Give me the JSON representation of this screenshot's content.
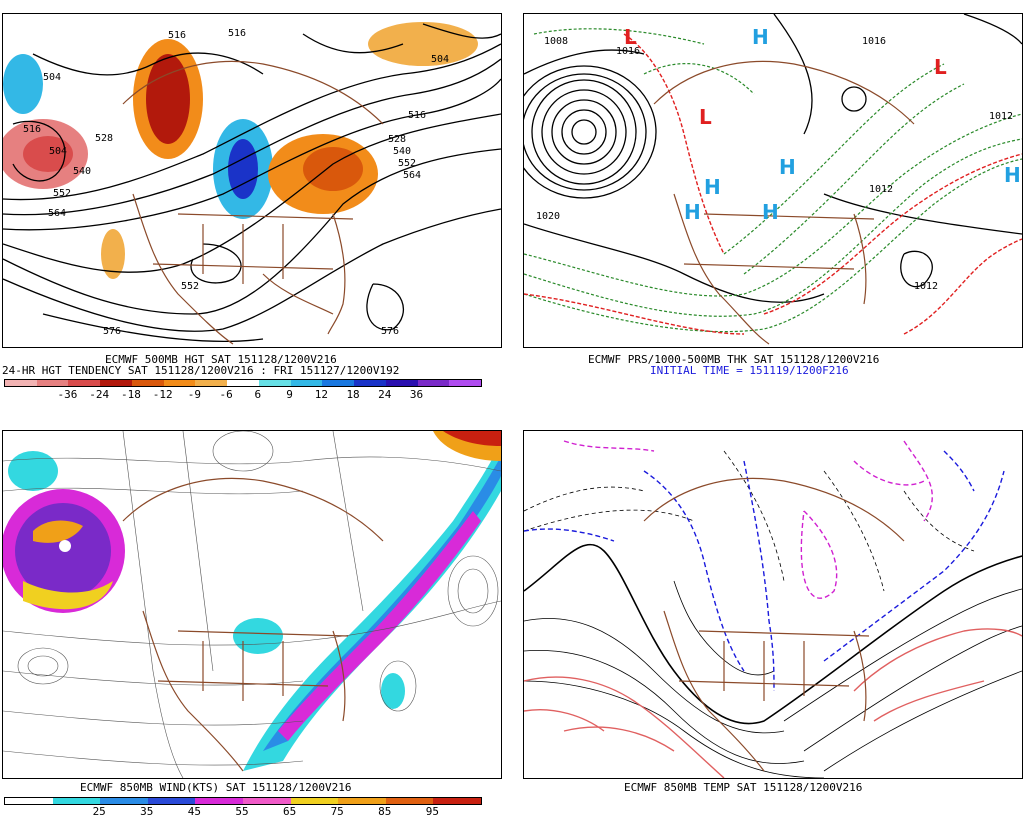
{
  "panels": {
    "top_left": {
      "line1": "ECMWF 500MB HGT SAT 151128/1200V216",
      "line2": "24-HR HGT TENDENCY SAT 151128/1200V216 : FRI 151127/1200V192",
      "contour_labels": [
        "504",
        "516",
        "516",
        "504",
        "516",
        "528",
        "540",
        "552",
        "564",
        "504",
        "528",
        "540",
        "552",
        "564",
        "516",
        "552",
        "576",
        "576"
      ],
      "colorbar": {
        "ticks": [
          "-36",
          "-24",
          "-18",
          "-12",
          "-9",
          "-6",
          "6",
          "9",
          "12",
          "18",
          "24",
          "36"
        ],
        "colors": [
          "#f2b3b3",
          "#e68080",
          "#d94c4c",
          "#b2190c",
          "#d9580c",
          "#f28c1a",
          "#f2b04c",
          "#ffffff",
          "#66e0e6",
          "#33b8e6",
          "#1a78e0",
          "#1a33c8",
          "#2a10b0",
          "#7a2ac8",
          "#b04cf0"
        ]
      }
    },
    "top_right": {
      "line1": "ECMWF PRS/1000-500MB THK SAT 151128/1200V216",
      "line2": "INITIAL TIME = 151119/1200F216",
      "pressure_labels": [
        "1008",
        "1016",
        "1020",
        "1012",
        "1012",
        "1016",
        "1012"
      ]
    },
    "bottom_left": {
      "line1": "ECMWF 850MB WIND(KTS) SAT 151128/1200V216",
      "colorbar": {
        "ticks": [
          "25",
          "35",
          "45",
          "55",
          "65",
          "75",
          "85",
          "95"
        ],
        "colors": [
          "#ffffff",
          "#33d8e0",
          "#2a8ce6",
          "#2a4ad8",
          "#d82ad8",
          "#f05ac8",
          "#f0d020",
          "#f0a018",
          "#e06010",
          "#c82010"
        ]
      }
    },
    "bottom_right": {
      "line1": "ECMWF 850MB TEMP SAT 151128/1200V216"
    }
  }
}
